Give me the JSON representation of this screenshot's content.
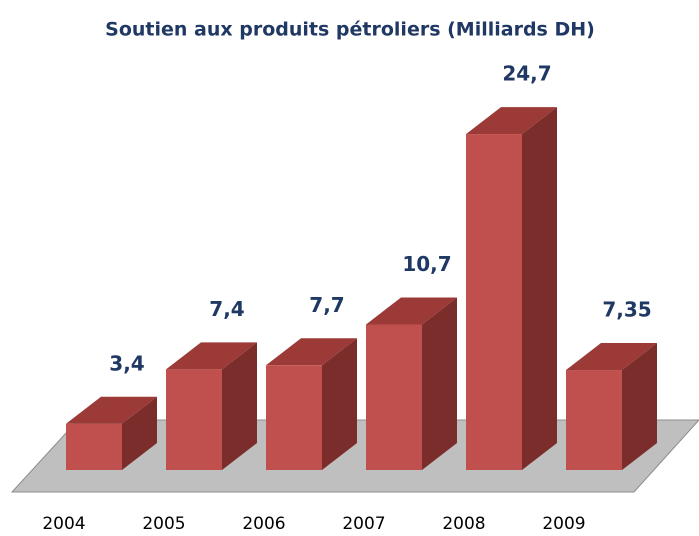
{
  "chart_data": {
    "type": "bar3d",
    "title": "Soutien aux produits pétroliers (Milliards DH)",
    "categories": [
      "2004",
      "2005",
      "2006",
      "2007",
      "2008",
      "2009"
    ],
    "values": [
      3.4,
      7.4,
      7.7,
      10.7,
      24.7,
      7.35
    ],
    "value_labels": [
      "3,4",
      "7,4",
      "7,7",
      "10,7",
      "24,7",
      "7,35"
    ],
    "color": "#c0504d"
  }
}
